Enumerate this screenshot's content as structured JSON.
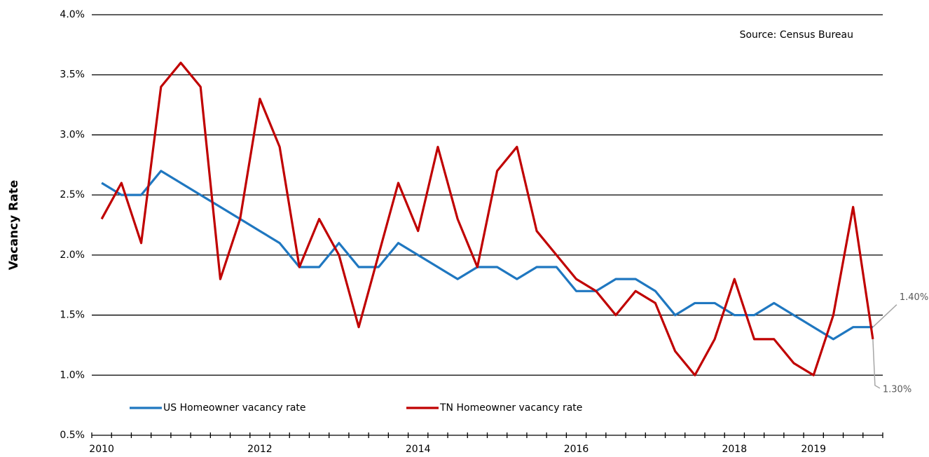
{
  "chart_data": {
    "type": "line",
    "y_label": "Vacancy Rate",
    "source": "Source: Census Bureau",
    "categories": [
      "2010",
      null,
      null,
      null,
      null,
      null,
      null,
      null,
      "2012",
      null,
      null,
      null,
      null,
      null,
      null,
      null,
      "2014",
      null,
      null,
      null,
      null,
      null,
      null,
      null,
      "2016",
      null,
      null,
      null,
      null,
      null,
      null,
      null,
      "2018",
      null,
      null,
      null,
      "2019",
      null,
      null,
      null
    ],
    "series": [
      {
        "name": "US Homeowner vacancy rate",
        "color": "#1f77c0",
        "values": [
          2.6,
          2.5,
          2.5,
          2.7,
          2.6,
          2.5,
          2.4,
          2.3,
          2.2,
          2.1,
          1.9,
          1.9,
          2.1,
          1.9,
          1.9,
          2.1,
          2.0,
          1.9,
          1.8,
          1.9,
          1.9,
          1.8,
          1.9,
          1.9,
          1.7,
          1.7,
          1.8,
          1.8,
          1.7,
          1.5,
          1.6,
          1.6,
          1.5,
          1.5,
          1.6,
          1.5,
          1.4,
          1.3,
          1.4,
          1.4
        ],
        "value_labels": [
          null,
          null,
          null,
          null,
          null,
          null,
          null,
          null,
          null,
          null,
          null,
          null,
          null,
          null,
          null,
          null,
          null,
          null,
          null,
          null,
          null,
          null,
          null,
          null,
          null,
          null,
          null,
          null,
          null,
          null,
          null,
          null,
          null,
          null,
          null,
          null,
          null,
          null,
          null,
          "1.40%"
        ]
      },
      {
        "name": "TN Homeowner vacancy rate",
        "color": "#c00000",
        "values": [
          2.3,
          2.6,
          2.1,
          3.4,
          3.6,
          3.4,
          1.8,
          2.3,
          3.3,
          2.9,
          1.9,
          2.3,
          2.0,
          1.4,
          2.0,
          2.6,
          2.2,
          2.9,
          2.3,
          1.9,
          2.7,
          2.9,
          2.2,
          2.0,
          1.8,
          1.7,
          1.5,
          1.7,
          1.6,
          1.2,
          1.0,
          1.3,
          1.8,
          1.3,
          1.3,
          1.1,
          1.0,
          1.5,
          2.4,
          1.3
        ],
        "value_labels": [
          null,
          null,
          null,
          null,
          null,
          null,
          null,
          null,
          null,
          null,
          null,
          null,
          null,
          null,
          null,
          null,
          null,
          null,
          null,
          null,
          null,
          null,
          null,
          null,
          null,
          null,
          null,
          null,
          null,
          null,
          null,
          null,
          null,
          null,
          null,
          null,
          null,
          null,
          null,
          "1.30%"
        ]
      }
    ],
    "ylim": [
      0.5,
      4.0
    ],
    "yticks": [
      {
        "value": 0.5,
        "label": "0.5%"
      },
      {
        "value": 1.0,
        "label": "1.0%"
      },
      {
        "value": 1.5,
        "label": "1.5%"
      },
      {
        "value": 2.0,
        "label": "2.0%"
      },
      {
        "value": 2.5,
        "label": "2.5%"
      },
      {
        "value": 3.0,
        "label": "3.0%"
      },
      {
        "value": 3.5,
        "label": "3.5%"
      },
      {
        "value": 4.0,
        "label": "4.0%"
      }
    ],
    "grid": true,
    "legend": "bottom-left"
  }
}
